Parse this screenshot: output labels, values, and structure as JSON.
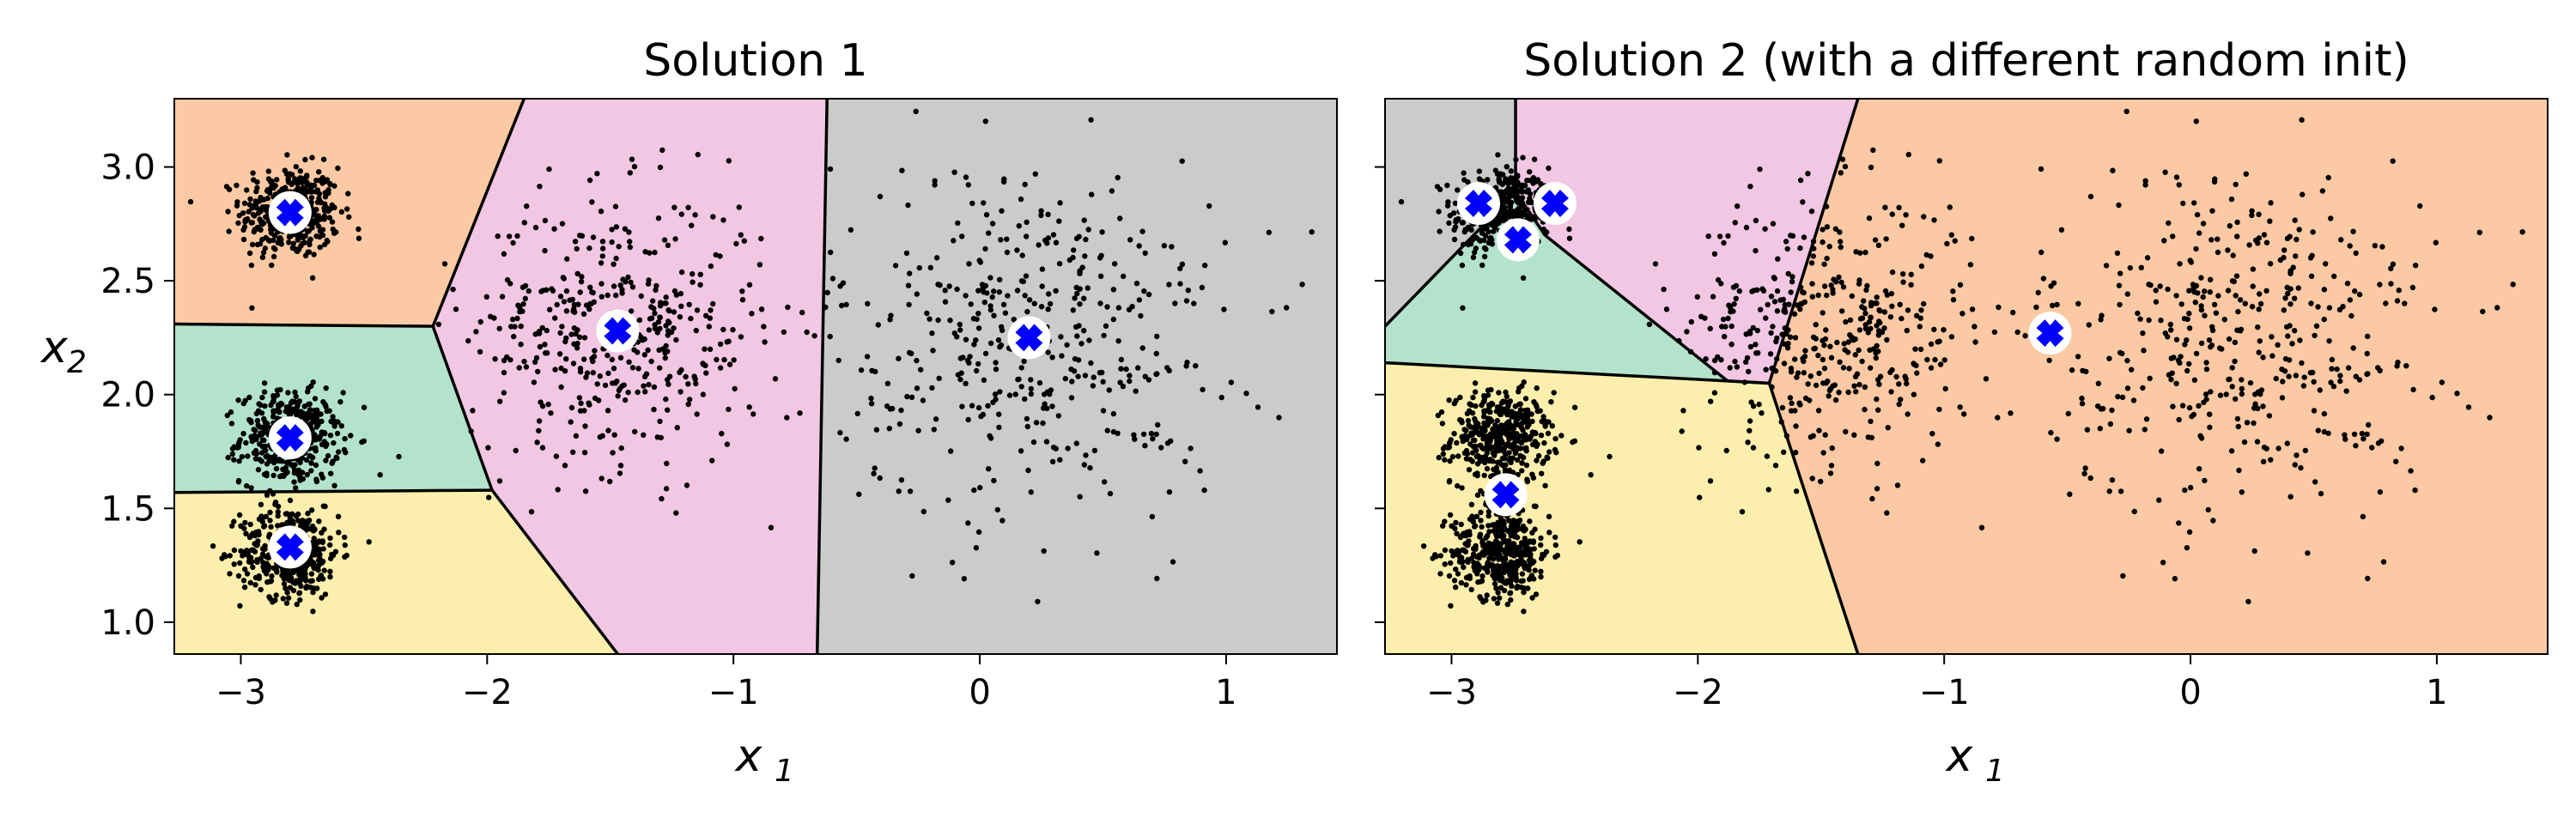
{
  "chart_data": [
    {
      "type": "scatter",
      "title": "Solution 1",
      "xlabel": "x",
      "xlabel_sub": "1",
      "ylabel": "x",
      "ylabel_sub": "2",
      "xlim": [
        -3.27,
        1.45
      ],
      "ylim": [
        0.86,
        3.3
      ],
      "xticks": [
        -3,
        -2,
        -1,
        0,
        1
      ],
      "xtick_labels": [
        "−3",
        "−2",
        "−1",
        "0",
        "1"
      ],
      "yticks": [
        1.0,
        1.5,
        2.0,
        2.5,
        3.0
      ],
      "ytick_labels": [
        "1.0",
        "1.5",
        "2.0",
        "2.5",
        "3.0"
      ],
      "regions": [
        {
          "color": "#fbc9a3",
          "polygon": [
            [
              -3.27,
              3.3
            ],
            [
              -1.85,
              3.3
            ],
            [
              -2.22,
              2.3
            ],
            [
              -3.27,
              2.31
            ]
          ]
        },
        {
          "color": "#b3e3cc",
          "polygon": [
            [
              -3.27,
              2.31
            ],
            [
              -2.22,
              2.3
            ],
            [
              -1.98,
              1.58
            ],
            [
              -3.27,
              1.57
            ]
          ]
        },
        {
          "color": "#fcefad",
          "polygon": [
            [
              -3.27,
              1.57
            ],
            [
              -1.98,
              1.58
            ],
            [
              -1.47,
              0.86
            ],
            [
              -3.27,
              0.86
            ]
          ]
        },
        {
          "color": "#f1c7e3",
          "polygon": [
            [
              -1.85,
              3.3
            ],
            [
              -0.62,
              3.3
            ],
            [
              -0.66,
              0.86
            ],
            [
              -1.47,
              0.86
            ],
            [
              -1.98,
              1.58
            ],
            [
              -2.22,
              2.3
            ]
          ]
        },
        {
          "color": "#cbcbcb",
          "polygon": [
            [
              -0.62,
              3.3
            ],
            [
              1.45,
              3.3
            ],
            [
              1.45,
              0.86
            ],
            [
              -0.66,
              0.86
            ]
          ]
        }
      ],
      "boundaries": [
        [
          [
            -3.27,
            2.31
          ],
          [
            -2.22,
            2.3
          ]
        ],
        [
          [
            -2.22,
            2.3
          ],
          [
            -1.85,
            3.3
          ]
        ],
        [
          [
            -2.22,
            2.3
          ],
          [
            -1.98,
            1.58
          ]
        ],
        [
          [
            -3.27,
            1.57
          ],
          [
            -1.98,
            1.58
          ]
        ],
        [
          [
            -1.98,
            1.58
          ],
          [
            -1.47,
            0.86
          ]
        ],
        [
          [
            -0.62,
            3.3
          ],
          [
            -0.66,
            0.86
          ]
        ]
      ],
      "centroids": [
        [
          -2.8,
          2.8
        ],
        [
          -2.8,
          1.81
        ],
        [
          -2.8,
          1.33
        ],
        [
          -1.47,
          2.28
        ],
        [
          0.2,
          2.25
        ]
      ]
    },
    {
      "type": "scatter",
      "title": "Solution 2 (with a different random init)",
      "xlabel": "x",
      "xlabel_sub": "1",
      "xlim": [
        -3.27,
        1.45
      ],
      "ylim": [
        0.86,
        3.3
      ],
      "xticks": [
        -3,
        -2,
        -1,
        0,
        1
      ],
      "xtick_labels": [
        "−3",
        "−2",
        "−1",
        "0",
        "1"
      ],
      "yticks": [
        1.0,
        1.5,
        2.0,
        2.5,
        3.0
      ],
      "regions": [
        {
          "color": "#cbcbcb",
          "polygon": [
            [
              -3.27,
              3.3
            ],
            [
              -2.74,
              3.3
            ],
            [
              -2.74,
              2.89
            ],
            [
              -3.27,
              2.3
            ]
          ]
        },
        {
          "color": "#f1c7e3",
          "polygon": [
            [
              -2.74,
              3.3
            ],
            [
              -1.35,
              3.3
            ],
            [
              -1.71,
              2.05
            ],
            [
              -1.88,
              2.06
            ],
            [
              -2.62,
              2.7
            ],
            [
              -2.74,
              2.89
            ]
          ]
        },
        {
          "color": "#b3e3cc",
          "polygon": [
            [
              -3.27,
              2.3
            ],
            [
              -2.74,
              2.89
            ],
            [
              -2.62,
              2.7
            ],
            [
              -1.88,
              2.06
            ],
            [
              -1.71,
              2.05
            ],
            [
              -3.27,
              2.14
            ]
          ]
        },
        {
          "color": "#fcefad",
          "polygon": [
            [
              -3.27,
              2.14
            ],
            [
              -1.71,
              2.05
            ],
            [
              -1.35,
              0.86
            ],
            [
              -3.27,
              0.86
            ]
          ]
        },
        {
          "color": "#fbc9a3",
          "polygon": [
            [
              -1.35,
              3.3
            ],
            [
              1.45,
              3.3
            ],
            [
              1.45,
              0.86
            ],
            [
              -1.35,
              0.86
            ],
            [
              -1.71,
              2.05
            ]
          ]
        }
      ],
      "boundaries": [
        [
          [
            -3.27,
            2.3
          ],
          [
            -2.74,
            2.89
          ]
        ],
        [
          [
            -2.74,
            3.3
          ],
          [
            -2.74,
            2.89
          ]
        ],
        [
          [
            -2.74,
            2.89
          ],
          [
            -2.62,
            2.7
          ]
        ],
        [
          [
            -2.62,
            2.7
          ],
          [
            -1.88,
            2.06
          ]
        ],
        [
          [
            -1.88,
            2.06
          ],
          [
            -1.71,
            2.05
          ]
        ],
        [
          [
            -1.71,
            2.05
          ],
          [
            -1.35,
            3.3
          ]
        ],
        [
          [
            -3.27,
            2.14
          ],
          [
            -1.71,
            2.05
          ]
        ],
        [
          [
            -1.71,
            2.05
          ],
          [
            -1.35,
            0.86
          ]
        ]
      ],
      "centroids": [
        [
          -2.89,
          2.84
        ],
        [
          -2.58,
          2.84
        ],
        [
          -2.73,
          2.68
        ],
        [
          -2.78,
          1.56
        ],
        [
          -0.57,
          2.27
        ]
      ]
    }
  ],
  "blobs": [
    {
      "center": [
        -2.8,
        2.8
      ],
      "sd": 0.1,
      "n": 420
    },
    {
      "center": [
        -2.8,
        1.81
      ],
      "sd": 0.1,
      "n": 420
    },
    {
      "center": [
        -2.8,
        1.31
      ],
      "sd": 0.1,
      "n": 420
    },
    {
      "center": [
        -1.47,
        2.28
      ],
      "sd": 0.3,
      "n": 430
    },
    {
      "center": [
        0.2,
        2.25
      ],
      "sd": 0.4,
      "n": 430
    }
  ]
}
